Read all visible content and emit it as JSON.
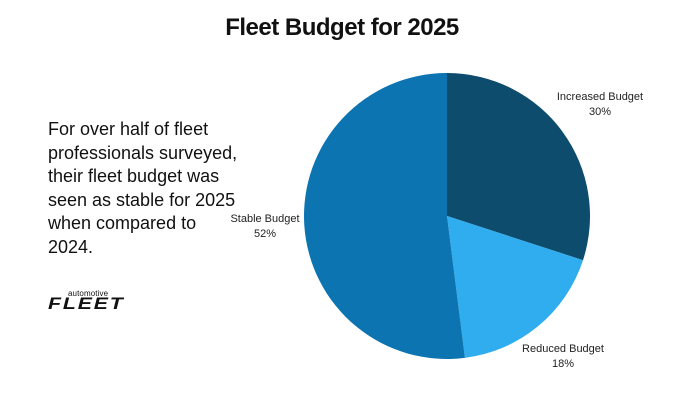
{
  "title": "Fleet Budget for 2025",
  "summary": "For over half of fleet professionals surveyed, their fleet budget was seen as stable for 2025 when compared to 2024.",
  "logo": {
    "top": "automotive",
    "main": "FLEET"
  },
  "chart_data": {
    "type": "pie",
    "title": "Fleet Budget for 2025",
    "slices": [
      {
        "label": "Increased Budget",
        "value": 30,
        "value_label": "30%",
        "color": "#0d4c6d"
      },
      {
        "label": "Reduced Budget",
        "value": 18,
        "value_label": "18%",
        "color": "#30adee"
      },
      {
        "label": "Stable Budget",
        "value": 52,
        "value_label": "52%",
        "color": "#0c74b0"
      }
    ],
    "start": "12 o'clock",
    "direction": "clockwise",
    "legend": "none"
  }
}
